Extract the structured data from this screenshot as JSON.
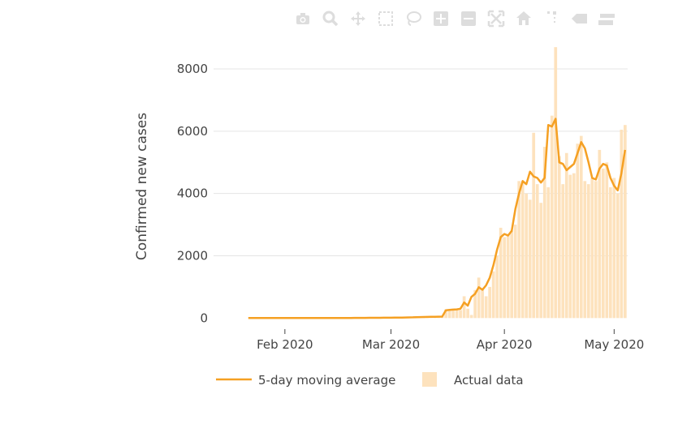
{
  "modebar": {
    "buttons": [
      {
        "name": "camera-icon",
        "title": "Download plot as a png"
      },
      {
        "name": "zoom-icon",
        "title": "Zoom"
      },
      {
        "name": "pan-icon",
        "title": "Pan"
      },
      {
        "name": "box-select-icon",
        "title": "Box Select"
      },
      {
        "name": "lasso-select-icon",
        "title": "Lasso Select"
      },
      {
        "name": "zoom-in-icon",
        "title": "Zoom in"
      },
      {
        "name": "zoom-out-icon",
        "title": "Zoom out"
      },
      {
        "name": "autoscale-icon",
        "title": "Autoscale"
      },
      {
        "name": "reset-axes-icon",
        "title": "Reset axes"
      },
      {
        "name": "spike-lines-icon",
        "title": "Toggle Spike Lines"
      },
      {
        "name": "hover-closest-icon",
        "title": "Show closest data on hover"
      },
      {
        "name": "hover-compare-icon",
        "title": "Compare data on hover"
      }
    ]
  },
  "chart_data": {
    "type": "bar",
    "title": "",
    "xlabel": "",
    "ylabel": "Confirmed new cases",
    "x_start": "2020-01-22",
    "x_tick_labels": [
      "Feb 2020",
      "Mar 2020",
      "Apr 2020",
      "May 2020"
    ],
    "x_tick_dates": [
      "2020-02-01",
      "2020-03-01",
      "2020-04-01",
      "2020-05-01"
    ],
    "y_ticks": [
      0,
      2000,
      4000,
      6000,
      8000
    ],
    "ylim": [
      -200,
      8600
    ],
    "grid": true,
    "legend_position": "bottom",
    "colors": {
      "line": "#f5a023",
      "bars": "#fde2bd",
      "grid": "#e5e5e5",
      "text": "#444444"
    },
    "series": [
      {
        "name": "5-day moving average",
        "type": "line",
        "values": [
          0,
          0,
          0,
          0,
          1,
          1,
          1,
          1,
          1,
          1,
          1,
          1,
          1,
          1,
          1,
          1,
          2,
          2,
          2,
          2,
          2,
          3,
          3,
          3,
          3,
          3,
          4,
          4,
          4,
          5,
          5,
          6,
          6,
          7,
          7,
          8,
          9,
          10,
          11,
          12,
          13,
          14,
          15,
          18,
          22,
          25,
          28,
          32,
          35,
          38,
          40,
          42,
          45,
          48,
          250,
          260,
          270,
          280,
          300,
          500,
          400,
          680,
          780,
          990,
          910,
          1050,
          1300,
          1700,
          2200,
          2600,
          2700,
          2650,
          2800,
          3500,
          4000,
          4400,
          4300,
          4700,
          4550,
          4500,
          4350,
          4500,
          6200,
          6150,
          6400,
          5000,
          4950,
          4750,
          4850,
          4950,
          5300,
          5650,
          5450,
          5000,
          4500,
          4450,
          4800,
          4950,
          4900,
          4500,
          4250,
          4100,
          4650,
          5400
        ]
      },
      {
        "name": "Actual data",
        "type": "bar",
        "values": [
          0,
          0,
          0,
          0,
          1,
          1,
          1,
          1,
          1,
          1,
          1,
          1,
          1,
          1,
          1,
          1,
          2,
          2,
          2,
          2,
          2,
          3,
          3,
          3,
          3,
          3,
          4,
          4,
          4,
          5,
          5,
          6,
          6,
          7,
          7,
          8,
          9,
          10,
          11,
          12,
          13,
          14,
          15,
          18,
          22,
          25,
          28,
          32,
          35,
          38,
          40,
          42,
          45,
          48,
          280,
          250,
          300,
          300,
          260,
          700,
          300,
          100,
          900,
          1300,
          900,
          700,
          1000,
          1500,
          2000,
          2900,
          2600,
          2700,
          2800,
          3000,
          4400,
          4400,
          4000,
          3800,
          5950,
          4300,
          3700,
          5500,
          4200,
          6500,
          8700,
          5200,
          4300,
          5300,
          4600,
          4650,
          5600,
          5850,
          4400,
          4300,
          4500,
          4400,
          5400,
          4800,
          5000,
          4200,
          4500,
          4000,
          6050,
          6200
        ]
      }
    ]
  },
  "legend": {
    "line_label": "5-day moving average",
    "bar_label": "Actual data"
  }
}
